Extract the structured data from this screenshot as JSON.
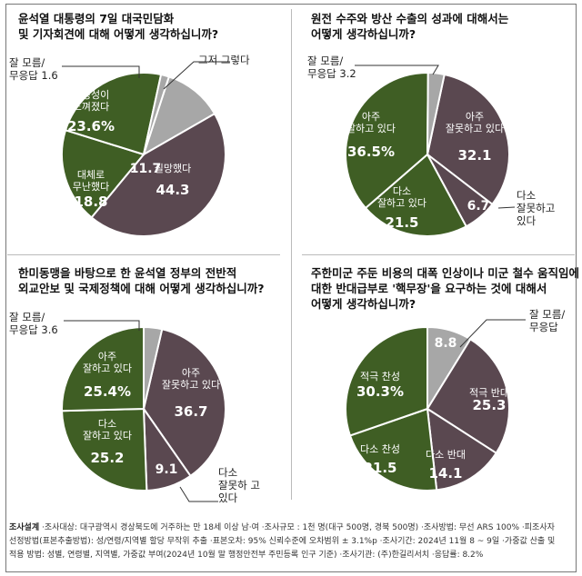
{
  "colors": {
    "green": "#3f5e24",
    "maroon": "#5a4850",
    "gray": "#a7a7a7",
    "line": "#333333"
  },
  "chart_data": [
    {
      "type": "pie",
      "title": [
        "윤석열 대통령의 7일 대국민담화",
        "및 기자회견에 대해 어떻게 생각하십니까?"
      ],
      "slices": [
        {
          "label": [
            "그저 그렇다"
          ],
          "value": 11.7,
          "color": "gray"
        },
        {
          "label": [
            "실망했다"
          ],
          "value": 44.3,
          "color": "maroon"
        },
        {
          "label": [
            "대체로",
            "무난했다"
          ],
          "value": 18.8,
          "color": "green"
        },
        {
          "label": [
            "진정성이",
            "느껴졌다"
          ],
          "value": 23.6,
          "color": "green"
        },
        {
          "label": [
            "잘 모름/",
            "무응답 1.6"
          ],
          "value": 1.6,
          "color": "gray"
        }
      ]
    },
    {
      "type": "pie",
      "title": [
        "원전 수주와 방산 수출의 성과에 대해서는",
        "어떻게 생각하십니까?"
      ],
      "slices": [
        {
          "label": [
            "아주",
            "잘못하고 있다"
          ],
          "value": 32.1,
          "color": "maroon"
        },
        {
          "label": [
            "다소",
            "잘못하고",
            "있다"
          ],
          "value": 6.7,
          "color": "maroon"
        },
        {
          "label": [
            "다소",
            "잘하고 있다"
          ],
          "value": 21.5,
          "color": "green"
        },
        {
          "label": [
            "아주",
            "잘하고 있다"
          ],
          "value": 36.5,
          "color": "green"
        },
        {
          "label": [
            "잘 모름/",
            "무응답 3.2"
          ],
          "value": 3.2,
          "color": "gray"
        }
      ]
    },
    {
      "type": "pie",
      "title": [
        "한미동맹을 바탕으로 한 윤석열 정부의 전반적",
        "외교안보 및 국제정책에 대해 어떻게 생각하십니까?"
      ],
      "slices": [
        {
          "label": [
            "아주",
            "잘못하고 있다"
          ],
          "value": 36.7,
          "color": "maroon"
        },
        {
          "label": [
            "다소",
            "잘못하 고",
            "있다"
          ],
          "value": 9.1,
          "color": "maroon"
        },
        {
          "label": [
            "다소",
            "잘하고 있다"
          ],
          "value": 25.2,
          "color": "green"
        },
        {
          "label": [
            "아주",
            "잘하고 있다"
          ],
          "value": 25.4,
          "color": "green"
        },
        {
          "label": [
            "잘 모름/",
            "무응답 3.6"
          ],
          "value": 3.6,
          "color": "gray"
        }
      ]
    },
    {
      "type": "pie",
      "title": [
        "주한미군 주둔 비용의 대폭 인상이나 미군 철수 움직임에",
        "대한 반대급부로 '핵무장'을 요구하는 것에 대해서",
        "어떻게 생각하십니까?"
      ],
      "slices": [
        {
          "label": [
            "잘 모름/",
            "무응답"
          ],
          "value": 8.8,
          "color": "gray"
        },
        {
          "label": [
            "적극 반대"
          ],
          "value": 25.3,
          "color": "maroon"
        },
        {
          "label": [
            "다소 반대"
          ],
          "value": 14.1,
          "color": "maroon"
        },
        {
          "label": [
            "다소 찬성"
          ],
          "value": 21.5,
          "color": "green"
        },
        {
          "label": [
            "적극 찬성"
          ],
          "value": 30.3,
          "color": "green"
        }
      ]
    }
  ],
  "footer": {
    "label": "조사설계",
    "lines": [
      " ·조사대상: 대구광역시 경상북도에 거주하는 만 18세 이상 남·여 ·조사규모 : 1천 명(대구 500명, 경북 500명) ·조사방법: 무선 ARS 100% ·피조사자",
      "선정방법(표본추출방법): 성/연령/지역별 할당 무작위 추출 ·표본오차: 95% 신뢰수준에 오차범위 ± 3.1%p ·조사기간: 2024년 11월 8 ~ 9일 ·가중값 산출 및",
      "적용 방법: 성별, 연령별, 지역별, 가중값 부여(2024년 10월 말 행정안전부 주민등록 인구 기준) ·조사기관: (주)한길리서치 ·응답률: 8.2%"
    ]
  }
}
